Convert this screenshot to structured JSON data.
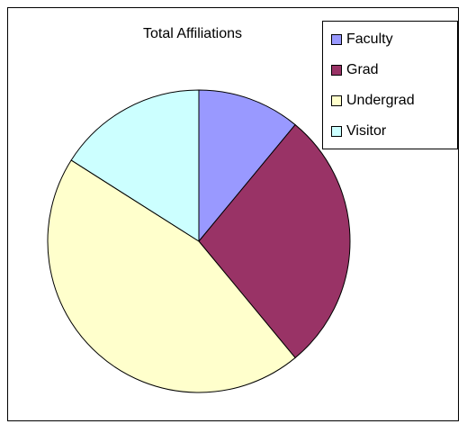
{
  "chart_data": {
    "type": "pie",
    "title": "Total Affiliations",
    "categories": [
      "Faculty",
      "Grad",
      "Undergrad",
      "Visitor"
    ],
    "values": [
      11,
      28,
      45,
      16
    ],
    "colors": [
      "#9999ff",
      "#993366",
      "#ffffcc",
      "#ccffff"
    ],
    "legend": "right"
  }
}
